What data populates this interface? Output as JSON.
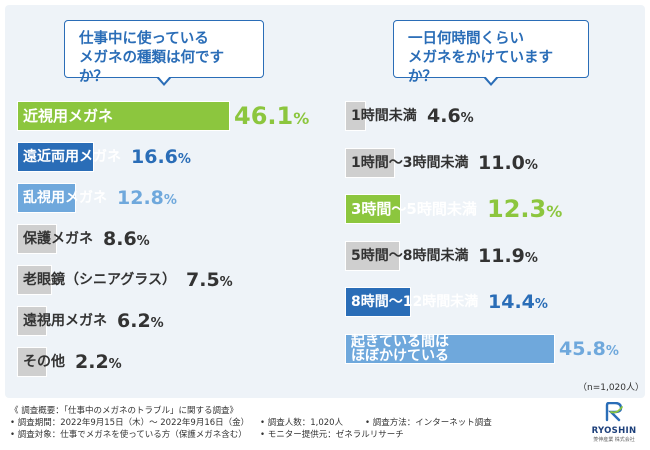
{
  "colors": {
    "blue": "#2a6db7",
    "green": "#8cc63e",
    "gray": "#cfcfcf",
    "lightblue": "#6fa8dc",
    "text_dark": "#333333",
    "panel_bg": "#eef3f8"
  },
  "question_left": {
    "line1": "仕事中に使っている",
    "line2": "メガネの種類は何ですか？"
  },
  "question_right": {
    "line1": "一日何時間くらい",
    "line2": "メガネをかけていますか？"
  },
  "sample_note": "（n=1,020人）",
  "footer": {
    "overview": "《 調査概要：「仕事中のメガネのトラブル」に関する調査》",
    "period": "• 調査期間：2022年9月15日（木）～ 2022年9月16日（金）",
    "count": "• 調査人数：1,020人",
    "method": "• 調査方法：インターネット調査",
    "target": "• 調査対象：仕事でメガネを使っている方（保護メガネ含む）",
    "provider": "• モニター提供元：ゼネラルリサーチ"
  },
  "logo": {
    "name": "RYOSHIN",
    "sub": "菱伸産業 株式会社",
    "icon_name": "ryoshin-logo-icon"
  },
  "chart_data": [
    {
      "type": "bar",
      "orientation": "horizontal",
      "title": "仕事中に使っているメガネの種類は何ですか？",
      "unit": "%",
      "categories": [
        "近視用メガネ",
        "遠近両用メガネ",
        "乱視用メガネ",
        "保護メガネ",
        "老眼鏡（シニアグラス）",
        "遠視用メガネ",
        "その他"
      ],
      "values": [
        46.1,
        16.6,
        12.8,
        8.6,
        7.5,
        6.2,
        2.2
      ],
      "value_labels": [
        "46.1",
        "16.6",
        "12.8",
        "8.6",
        "7.5",
        "6.2",
        "2.2"
      ],
      "bar_colors": [
        "green",
        "blue",
        "lightblue",
        "gray",
        "gray",
        "gray",
        "gray"
      ],
      "xlim": [
        0,
        46.1
      ]
    },
    {
      "type": "bar",
      "orientation": "horizontal",
      "title": "一日何時間くらいメガネをかけていますか？",
      "unit": "%",
      "categories": [
        "1時間未満",
        "1時間～3時間未満",
        "3時間～5時間未満",
        "5時間～8時間未満",
        "8時間～12時間未満",
        "起きている間はほぼかけている"
      ],
      "label_lines": [
        [
          "1時間未満"
        ],
        [
          "1時間～3時間未満"
        ],
        [
          "3時間～5時間未満"
        ],
        [
          "5時間～8時間未満"
        ],
        [
          "8時間～12時間未満"
        ],
        [
          "起きている間は",
          "ほぼかけている"
        ]
      ],
      "values": [
        4.6,
        11.0,
        12.3,
        11.9,
        14.4,
        45.8
      ],
      "value_labels": [
        "4.6",
        "11.0",
        "12.3",
        "11.9",
        "14.4",
        "45.8"
      ],
      "bar_colors": [
        "gray",
        "gray",
        "green",
        "gray",
        "blue",
        "lightblue"
      ],
      "xlim": [
        0,
        45.8
      ],
      "n": "n=1,020人"
    }
  ]
}
